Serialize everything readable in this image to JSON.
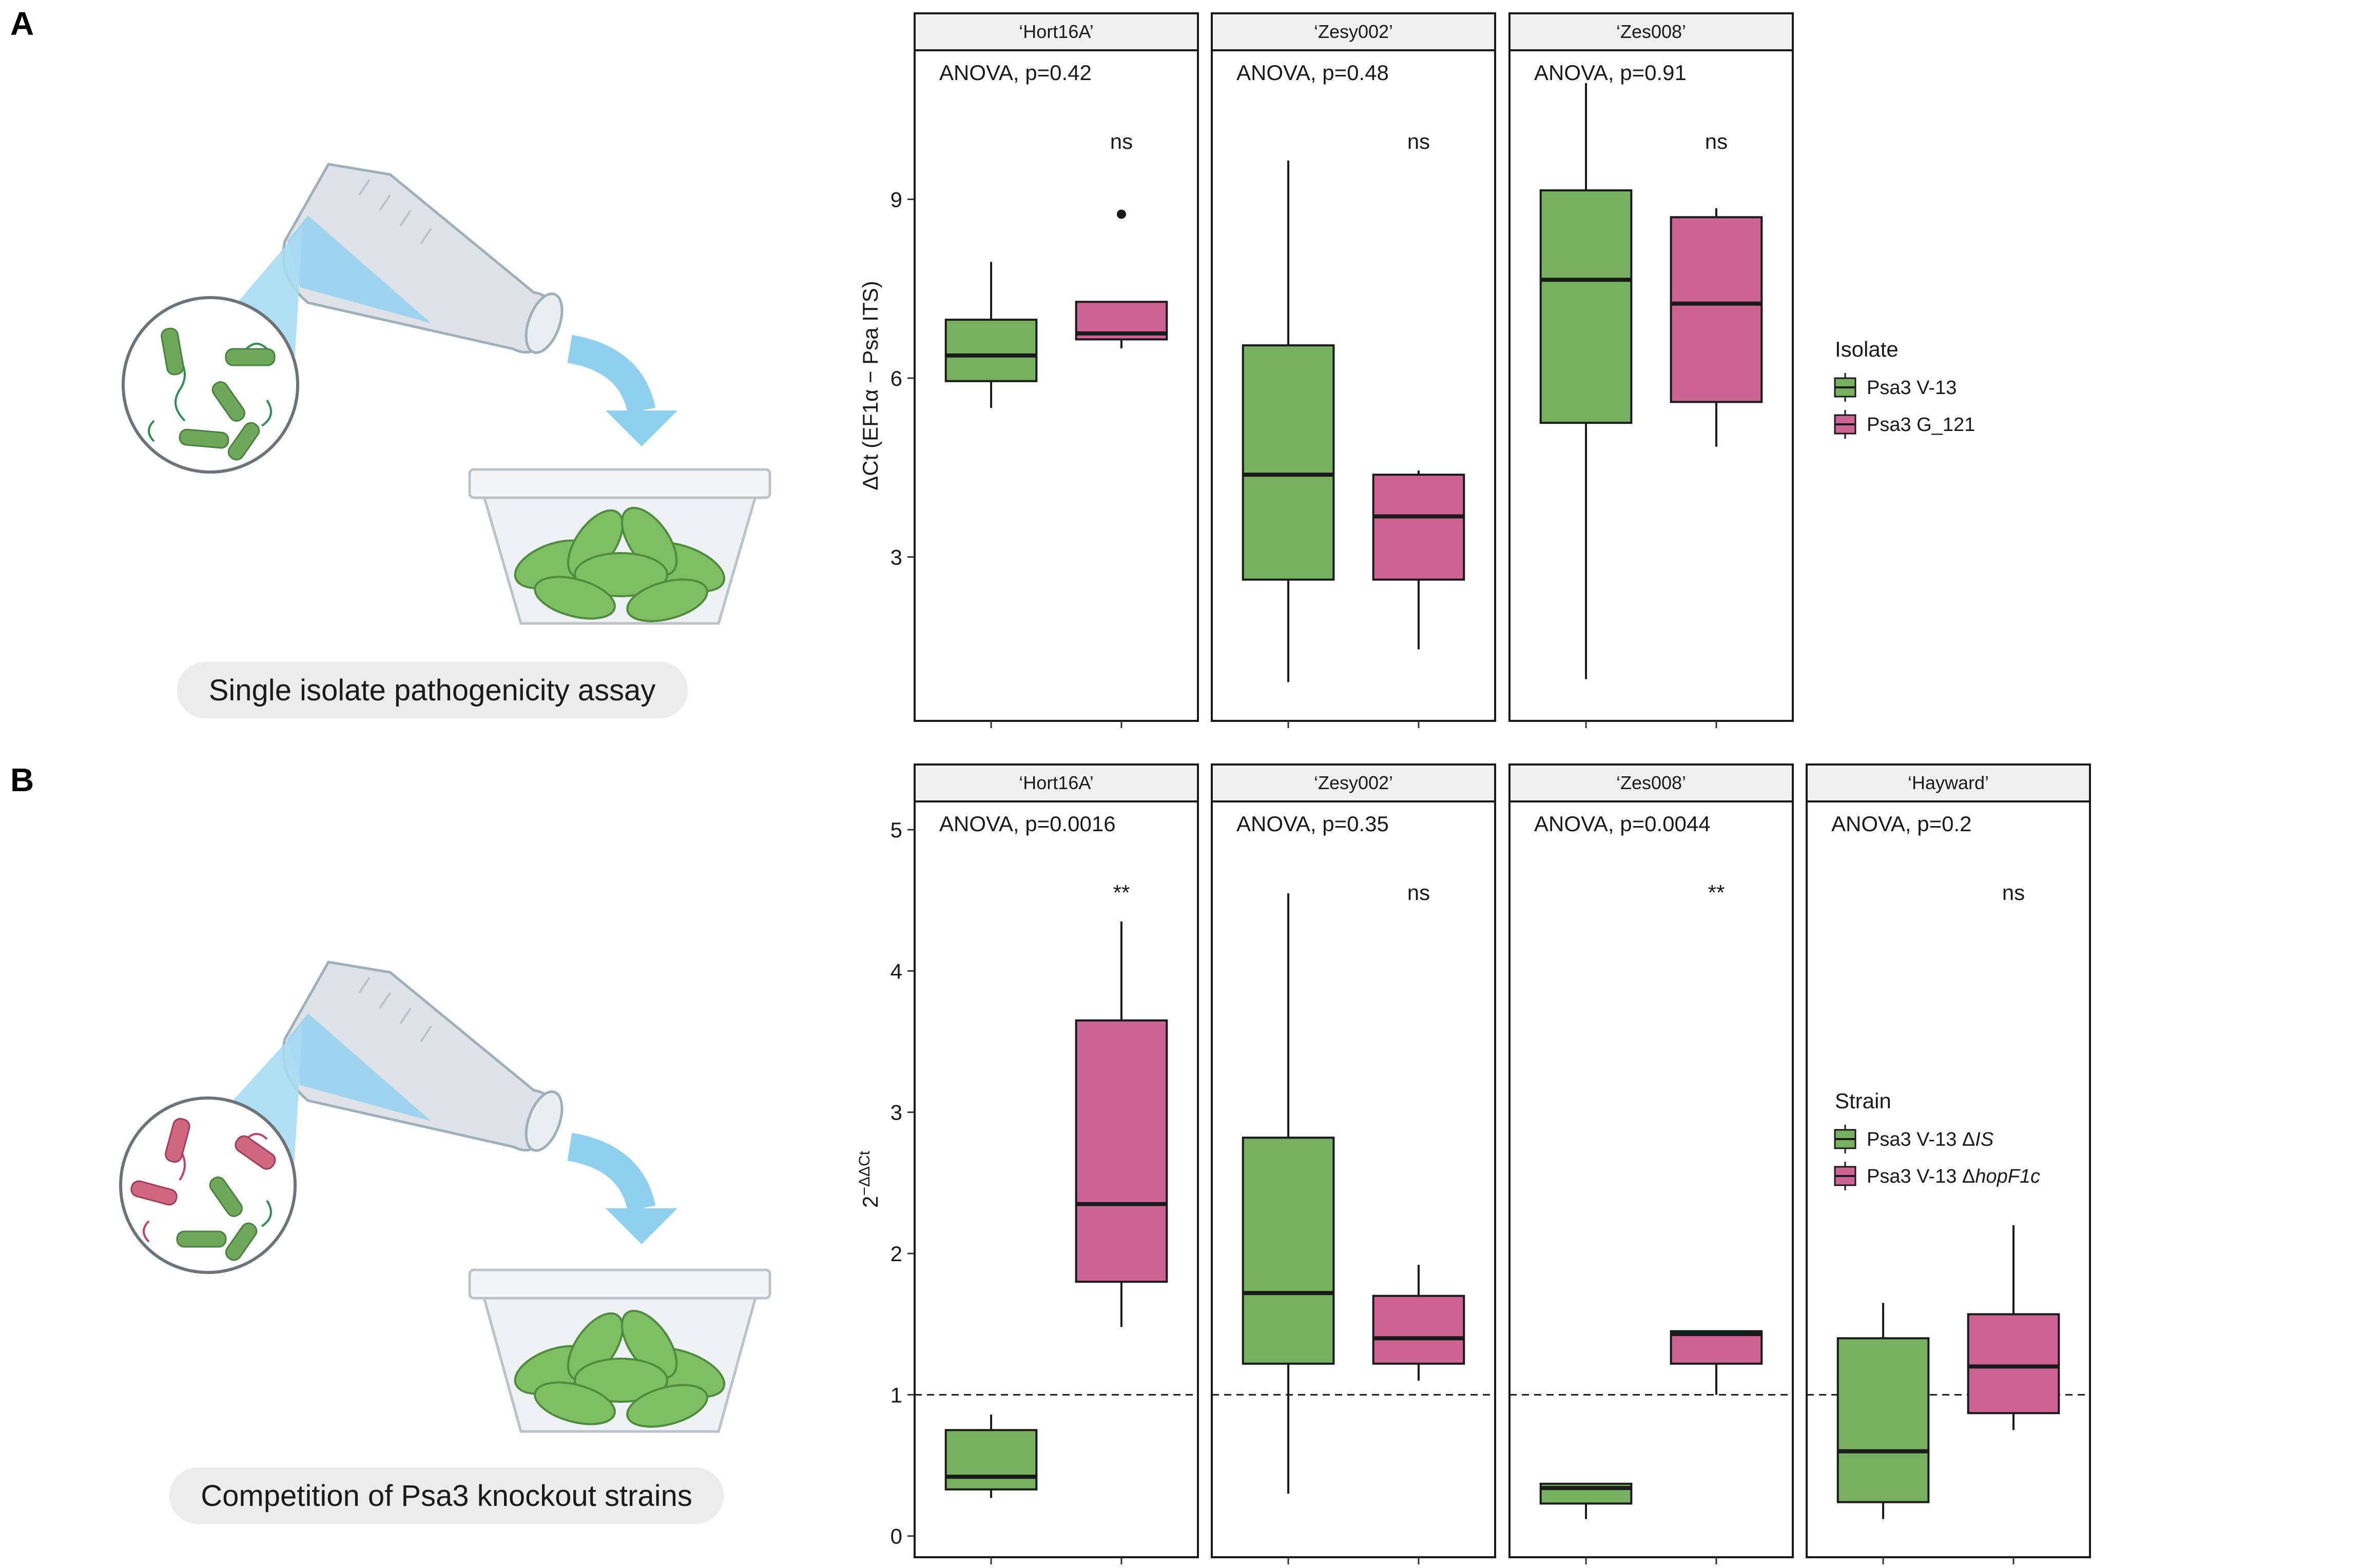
{
  "panels": {
    "a": {
      "letter": "A",
      "caption": "Single isolate pathogenicity assay",
      "illustration_icon": "flask-pouring-bacteria-onto-plants-icon"
    },
    "b": {
      "letter": "B",
      "caption": "Competition of Psa3 knockout strains",
      "illustration_icon": "flask-pouring-mixed-bacteria-onto-plants-icon"
    }
  },
  "colors": {
    "green": "#77b05f",
    "pink": "#cd6392",
    "strip_bg": "#f0f0f0",
    "bubble": "#cfe8f5",
    "flask": "#dde3e8",
    "leaf": "#7fbf63",
    "pot": "#eef2f4"
  },
  "chart_data": [
    {
      "type": "boxplot",
      "panel": "A",
      "ylabel": "ΔCt (EF1α − Psa ITS)",
      "ylim": [
        0.25,
        11.5
      ],
      "yticks": [
        3,
        6,
        9
      ],
      "legend": {
        "title": "Isolate",
        "entries": [
          "Psa3 V-13",
          "Psa3 G_121"
        ],
        "placement": "right"
      },
      "facets": [
        {
          "name": "‘Hort16A’",
          "anova": "ANOVA, p=0.42",
          "sig": "ns",
          "boxes": [
            {
              "series": "Psa3 V-13",
              "color": "green",
              "whisker_low": 5.5,
              "q1": 5.95,
              "median": 6.38,
              "q3": 6.98,
              "whisker_high": 7.95,
              "outliers": []
            },
            {
              "series": "Psa3 G_121",
              "color": "pink",
              "whisker_low": 6.5,
              "q1": 6.65,
              "median": 6.75,
              "q3": 7.28,
              "whisker_high": 7.28,
              "outliers": [
                8.75
              ]
            }
          ]
        },
        {
          "name": "‘Zesy002’",
          "anova": "ANOVA, p=0.48",
          "sig": "ns",
          "boxes": [
            {
              "series": "Psa3 V-13",
              "color": "green",
              "whisker_low": 0.9,
              "q1": 2.62,
              "median": 4.38,
              "q3": 6.55,
              "whisker_high": 9.65,
              "outliers": []
            },
            {
              "series": "Psa3 G_121",
              "color": "pink",
              "whisker_low": 1.45,
              "q1": 2.62,
              "median": 3.68,
              "q3": 4.38,
              "whisker_high": 4.45,
              "outliers": []
            }
          ]
        },
        {
          "name": "‘Zes008’",
          "anova": "ANOVA, p=0.91",
          "sig": "ns",
          "boxes": [
            {
              "series": "Psa3 V-13",
              "color": "green",
              "whisker_low": 0.95,
              "q1": 5.25,
              "median": 7.65,
              "q3": 9.15,
              "whisker_high": 10.95,
              "outliers": []
            },
            {
              "series": "Psa3 G_121",
              "color": "pink",
              "whisker_low": 4.85,
              "q1": 5.6,
              "median": 7.25,
              "q3": 8.7,
              "whisker_high": 8.85,
              "outliers": []
            }
          ]
        }
      ],
      "xticks": []
    },
    {
      "type": "boxplot",
      "panel": "B",
      "ylabel": "2",
      "ylabel_superscript": "−ΔΔCt",
      "ylim": [
        -0.15,
        5.2
      ],
      "yticks": [
        0,
        1,
        2,
        3,
        4,
        5
      ],
      "reference_line": 1,
      "legend": {
        "title": "Strain",
        "entries": [
          "Psa3 V-13 ΔIS",
          "Psa3 V-13 ΔhopF1c"
        ],
        "placement": "right"
      },
      "facets": [
        {
          "name": "‘Hort16A’",
          "anova": "ANOVA, p=0.0016",
          "sig": "**",
          "boxes": [
            {
              "series": "Psa3 V-13 ΔIS",
              "color": "green",
              "whisker_low": 0.27,
              "q1": 0.33,
              "median": 0.42,
              "q3": 0.75,
              "whisker_high": 0.86,
              "outliers": []
            },
            {
              "series": "Psa3 V-13 ΔhopF1c",
              "color": "pink",
              "whisker_low": 1.48,
              "q1": 1.8,
              "median": 2.35,
              "q3": 3.65,
              "whisker_high": 4.35,
              "outliers": []
            }
          ]
        },
        {
          "name": "‘Zesy002’",
          "anova": "ANOVA, p=0.35",
          "sig": "ns",
          "boxes": [
            {
              "series": "Psa3 V-13 ΔIS",
              "color": "green",
              "whisker_low": 0.3,
              "q1": 1.22,
              "median": 1.72,
              "q3": 2.82,
              "whisker_high": 4.55,
              "outliers": []
            },
            {
              "series": "Psa3 V-13 ΔhopF1c",
              "color": "pink",
              "whisker_low": 1.1,
              "q1": 1.22,
              "median": 1.4,
              "q3": 1.7,
              "whisker_high": 1.92,
              "outliers": []
            }
          ]
        },
        {
          "name": "‘Zes008’",
          "anova": "ANOVA, p=0.0044",
          "sig": "**",
          "boxes": [
            {
              "series": "Psa3 V-13 ΔIS",
              "color": "green",
              "whisker_low": 0.12,
              "q1": 0.23,
              "median": 0.34,
              "q3": 0.37,
              "whisker_high": 0.37,
              "outliers": []
            },
            {
              "series": "Psa3 V-13 ΔhopF1c",
              "color": "pink",
              "whisker_low": 1.0,
              "q1": 1.22,
              "median": 1.43,
              "q3": 1.45,
              "whisker_high": 1.45,
              "outliers": []
            }
          ]
        },
        {
          "name": "‘Hayward’",
          "anova": "ANOVA, p=0.2",
          "sig": "ns",
          "boxes": [
            {
              "series": "Psa3 V-13 ΔIS",
              "color": "green",
              "whisker_low": 0.12,
              "q1": 0.24,
              "median": 0.6,
              "q3": 1.4,
              "whisker_high": 1.65,
              "outliers": []
            },
            {
              "series": "Psa3 V-13 ΔhopF1c",
              "color": "pink",
              "whisker_low": 0.75,
              "q1": 0.87,
              "median": 1.2,
              "q3": 1.57,
              "whisker_high": 2.2,
              "outliers": []
            }
          ]
        }
      ],
      "xticks": []
    }
  ]
}
